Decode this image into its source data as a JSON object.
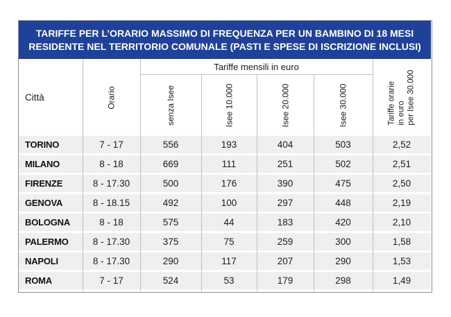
{
  "chart_data": {
    "type": "table",
    "title_lines": [
      "TARIFFE PER L’ORARIO MASSIMO DI FREQUENZA PER UN BAMBINO DI 18 MESI",
      "RESIDENTE NEL TERRITORIO COMUNALE (PASTI E SPESE DI ISCRIZIONE INCLUSI)"
    ],
    "group_header": "Tariffe mensili in euro",
    "columns": [
      "Città",
      "Orario",
      "senza Isee",
      "Isee 10.000",
      "Isee 20.000",
      "Isee 30.000",
      "Tariffe orarie in euro per Isee 30.000"
    ],
    "hourly_column_lines": [
      "Tariffe orarie",
      "in euro",
      "per Isee 30.000"
    ],
    "rows": [
      [
        "TORINO",
        "7 - 17",
        "556",
        "193",
        "404",
        "503",
        "2,52"
      ],
      [
        "MILANO",
        "8 - 18",
        "669",
        "111",
        "251",
        "502",
        "2,51"
      ],
      [
        "FIRENZE",
        "8 - 17.30",
        "500",
        "176",
        "390",
        "475",
        "2,50"
      ],
      [
        "GENOVA",
        "8 - 18.15",
        "492",
        "100",
        "297",
        "448",
        "2,19"
      ],
      [
        "BOLOGNA",
        "8 - 18",
        "575",
        "44",
        "183",
        "420",
        "2,10"
      ],
      [
        "PALERMO",
        "8 - 17.30",
        "375",
        "75",
        "259",
        "300",
        "1,58"
      ],
      [
        "NAPOLI",
        "8 - 17.30",
        "290",
        "117",
        "207",
        "290",
        "1,53"
      ],
      [
        "ROMA",
        "7 - 17",
        "524",
        "53",
        "179",
        "298",
        "1,49"
      ]
    ]
  },
  "colors": {
    "title_bg": "#20419a",
    "title_text": "#ffffff",
    "row_bg": "#efefef",
    "grid_line": "#bfbfbf",
    "outer_border": "#8f8f8f",
    "text": "#1a1a1a"
  }
}
